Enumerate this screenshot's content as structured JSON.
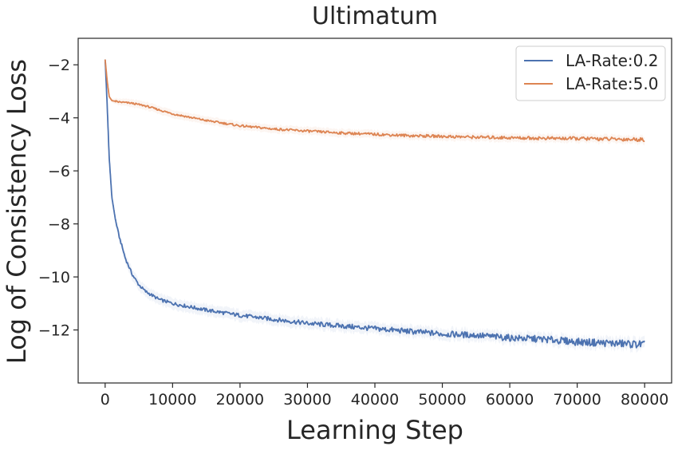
{
  "chart_data": {
    "type": "line",
    "title": "Ultimatum",
    "xlabel": "Learning Step",
    "ylabel": "Log of Consistency Loss",
    "xlim": [
      -4000,
      84000
    ],
    "ylim": [
      -14.0,
      -1.0
    ],
    "x_ticks": [
      0,
      10000,
      20000,
      30000,
      40000,
      50000,
      60000,
      70000,
      80000
    ],
    "x_tick_labels": [
      "0",
      "10000",
      "20000",
      "30000",
      "40000",
      "50000",
      "60000",
      "70000",
      "80000"
    ],
    "y_ticks": [
      -2,
      -4,
      -6,
      -8,
      -10,
      -12
    ],
    "y_tick_labels": [
      "−2",
      "−4",
      "−6",
      "−8",
      "−10",
      "−12"
    ],
    "grid": false,
    "legend_position": "top-right",
    "series": [
      {
        "name": "LA-Rate:0.2",
        "color": "#4c72b0",
        "x": [
          0,
          300,
          600,
          1000,
          1500,
          2000,
          3000,
          4000,
          5000,
          6000,
          7000,
          8000,
          10000,
          12000,
          15000,
          20000,
          25000,
          30000,
          35000,
          40000,
          45000,
          50000,
          55000,
          60000,
          65000,
          70000,
          75000,
          80000
        ],
        "y": [
          -1.8,
          -3.5,
          -5.5,
          -7.0,
          -7.8,
          -8.4,
          -9.3,
          -9.9,
          -10.3,
          -10.55,
          -10.7,
          -10.85,
          -11.0,
          -11.1,
          -11.25,
          -11.45,
          -11.6,
          -11.75,
          -11.85,
          -11.95,
          -12.05,
          -12.15,
          -12.2,
          -12.3,
          -12.35,
          -12.45,
          -12.5,
          -12.55
        ]
      },
      {
        "name": "LA-Rate:5.0",
        "color": "#dd8452",
        "x": [
          0,
          300,
          600,
          1000,
          2000,
          4000,
          6000,
          8000,
          10000,
          12000,
          15000,
          20000,
          25000,
          30000,
          35000,
          40000,
          45000,
          50000,
          55000,
          60000,
          65000,
          70000,
          75000,
          80000
        ],
        "y": [
          -1.8,
          -2.6,
          -3.2,
          -3.35,
          -3.4,
          -3.45,
          -3.55,
          -3.7,
          -3.85,
          -3.95,
          -4.1,
          -4.3,
          -4.42,
          -4.5,
          -4.57,
          -4.62,
          -4.67,
          -4.7,
          -4.73,
          -4.75,
          -4.77,
          -4.78,
          -4.8,
          -4.82
        ]
      }
    ]
  }
}
